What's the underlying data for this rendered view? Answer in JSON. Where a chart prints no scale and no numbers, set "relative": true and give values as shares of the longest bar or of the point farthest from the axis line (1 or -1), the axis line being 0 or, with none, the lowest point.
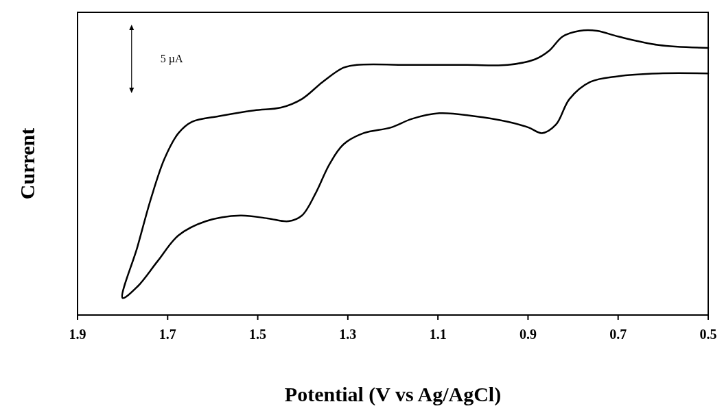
{
  "chart_data": {
    "type": "line",
    "relative": true,
    "xlabel": "Potential (V vs Ag/AgCl)",
    "ylabel": "Current",
    "annotations": [
      "5 µA"
    ],
    "xlim": [
      1.9,
      0.5
    ],
    "xticks": [
      {
        "value": 1.9,
        "label": "1.9"
      },
      {
        "value": 1.7,
        "label": "1.7"
      },
      {
        "value": 1.5,
        "label": "1.5"
      },
      {
        "value": 1.3,
        "label": "1.3"
      },
      {
        "value": 1.1,
        "label": "1.1"
      },
      {
        "value": 0.9,
        "label": "0.9"
      },
      {
        "value": 0.7,
        "label": "0.7"
      },
      {
        "value": 0.5,
        "label": "0.5"
      }
    ],
    "tick_labels": "x",
    "grid": false,
    "line_style": "solid",
    "series": [
      {
        "color": "#000000",
        "x": [
          0.5,
          0.61,
          0.7,
          0.747,
          0.785,
          0.823,
          0.853,
          0.884,
          0.945,
          1.036,
          1.158,
          1.28,
          1.31,
          1.356,
          1.402,
          1.448,
          1.508,
          1.585,
          1.646,
          1.676,
          1.707,
          1.737,
          1.767,
          1.8,
          1.767,
          1.722,
          1.676,
          1.615,
          1.539,
          1.478,
          1.432,
          1.402,
          1.371,
          1.341,
          1.31,
          1.265,
          1.204,
          1.158,
          1.097,
          1.021,
          0.945,
          0.899,
          0.869,
          0.838,
          0.808,
          0.762,
          0.701,
          0.61,
          0.5
        ],
        "values": [
          0.94,
          0.95,
          0.98,
          1.0,
          1.0,
          0.98,
          0.93,
          0.9,
          0.88,
          0.88,
          0.88,
          0.88,
          0.87,
          0.82,
          0.76,
          0.73,
          0.72,
          0.7,
          0.68,
          0.64,
          0.55,
          0.41,
          0.24,
          0.06,
          0.1,
          0.19,
          0.28,
          0.33,
          0.35,
          0.34,
          0.33,
          0.35,
          0.43,
          0.53,
          0.6,
          0.64,
          0.66,
          0.69,
          0.71,
          0.7,
          0.68,
          0.66,
          0.64,
          0.67,
          0.76,
          0.82,
          0.84,
          0.85,
          0.85
        ]
      }
    ]
  }
}
